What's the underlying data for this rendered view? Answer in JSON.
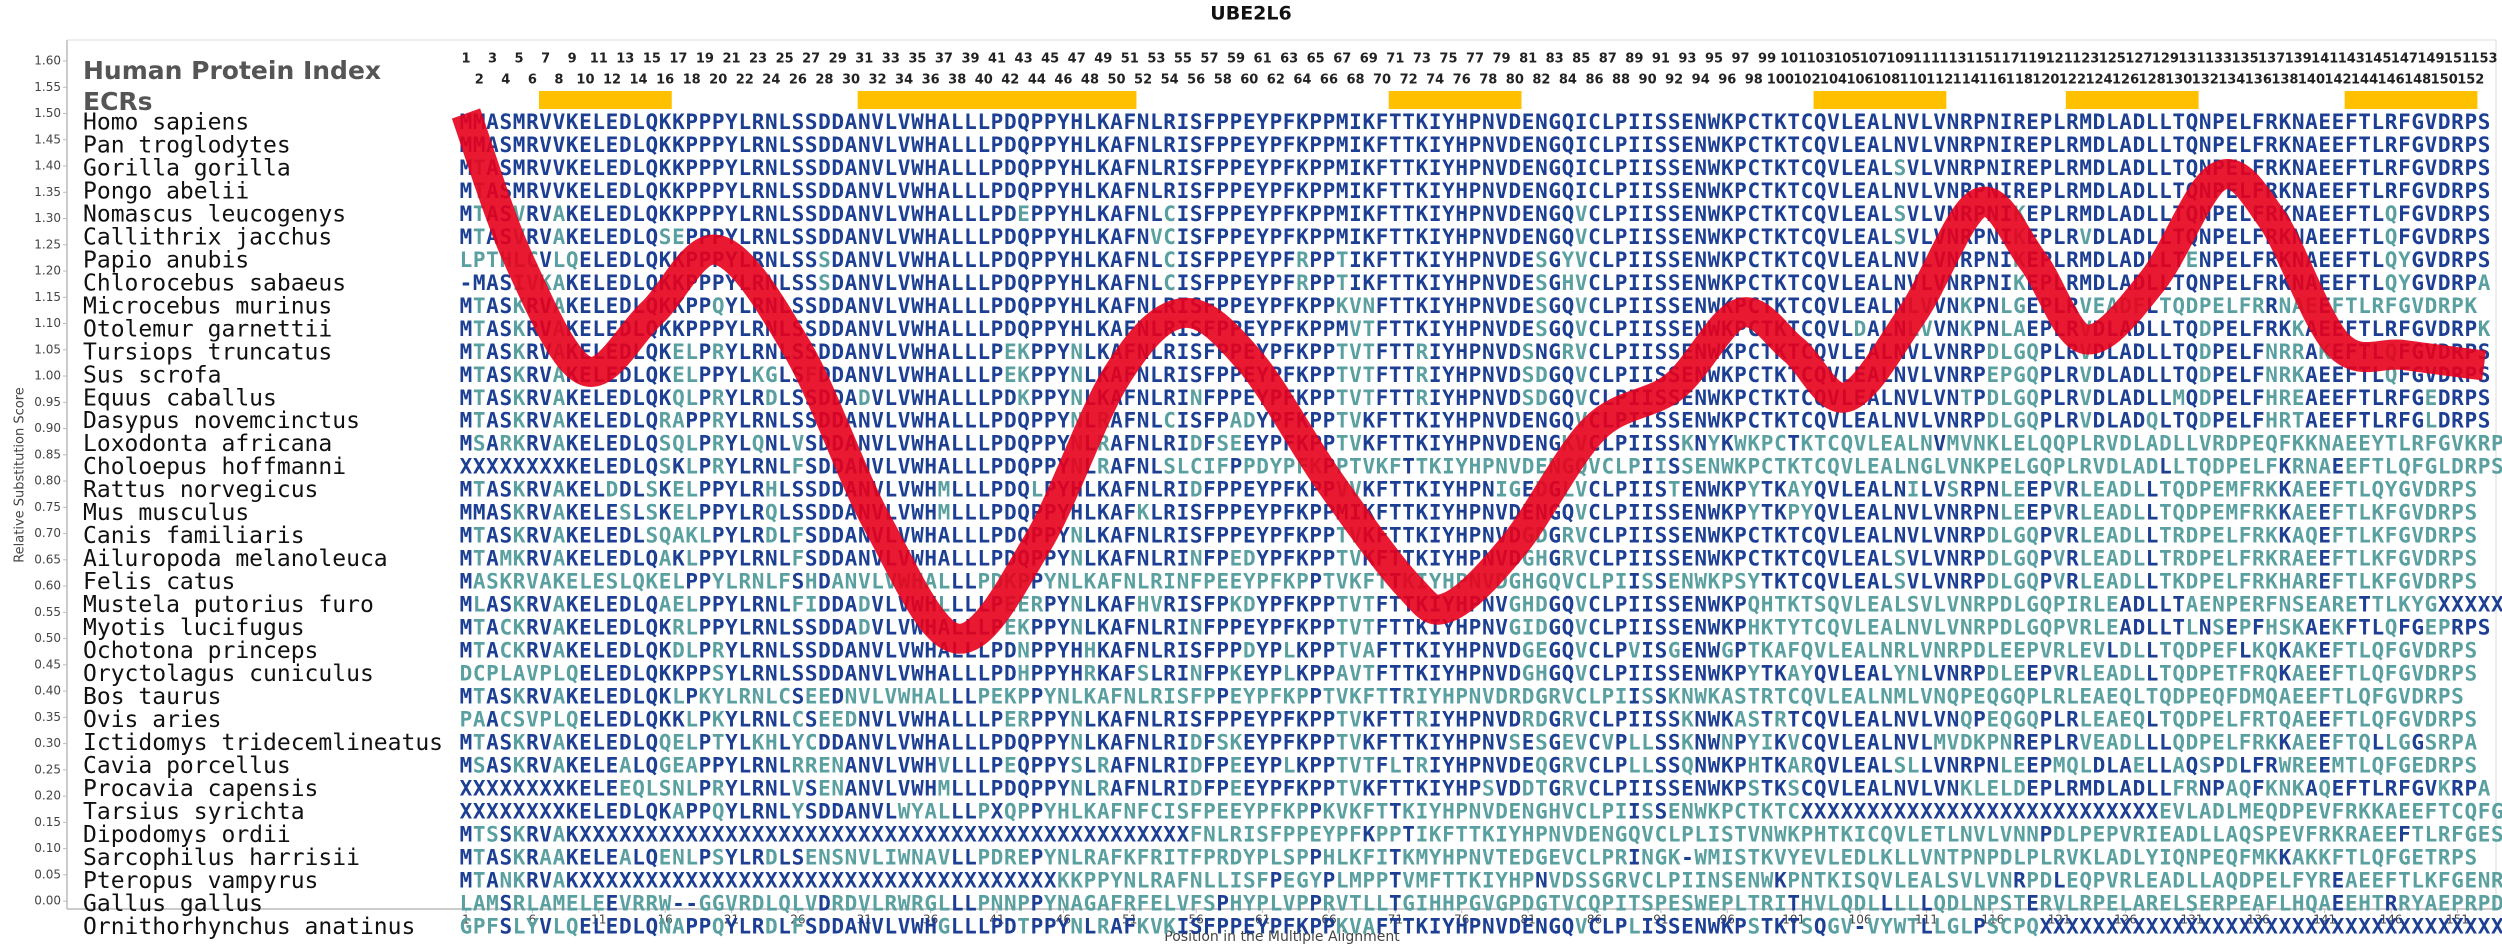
{
  "chart_data": {
    "type": "line",
    "title": "UBE2L6",
    "ylabel": "Relative Substitution Score",
    "xlabel": "Position in the Multiple Alignment",
    "index_label": "Human Protein Index",
    "ecr_label": "ECRs",
    "ecr_color": "#ffc000",
    "color": "#e8001c",
    "xlim": [
      -29.05,
      153.9
    ],
    "ylim": [
      -0.015,
      1.64
    ],
    "yticks": [
      {
        "value": 0,
        "label": "0.00"
      },
      {
        "value": 0.05,
        "label": "0.05"
      },
      {
        "value": 0.1,
        "label": "0.10"
      },
      {
        "value": 0.15,
        "label": "0.15"
      },
      {
        "value": 0.2,
        "label": "0.20"
      },
      {
        "value": 0.25,
        "label": "0.25"
      },
      {
        "value": 0.3,
        "label": "0.30"
      },
      {
        "value": 0.35,
        "label": "0.35"
      },
      {
        "value": 0.4,
        "label": "0.40"
      },
      {
        "value": 0.45,
        "label": "0.45"
      },
      {
        "value": 0.5,
        "label": "0.50"
      },
      {
        "value": 0.55,
        "label": "0.55"
      },
      {
        "value": 0.6,
        "label": "0.60"
      },
      {
        "value": 0.65,
        "label": "0.65"
      },
      {
        "value": 0.7,
        "label": "0.70"
      },
      {
        "value": 0.75,
        "label": "0.75"
      },
      {
        "value": 0.8,
        "label": "0.80"
      },
      {
        "value": 0.85,
        "label": "0.85"
      },
      {
        "value": 0.9,
        "label": "0.90"
      },
      {
        "value": 0.95,
        "label": "0.95"
      },
      {
        "value": 1,
        "label": "1.00"
      },
      {
        "value": 1.05,
        "label": "1.05"
      },
      {
        "value": 1.1,
        "label": "1.10"
      },
      {
        "value": 1.15,
        "label": "1.15"
      },
      {
        "value": 1.2,
        "label": "1.20"
      },
      {
        "value": 1.25,
        "label": "1.25"
      },
      {
        "value": 1.3,
        "label": "1.30"
      },
      {
        "value": 1.35,
        "label": "1.35"
      },
      {
        "value": 1.4,
        "label": "1.40"
      },
      {
        "value": 1.45,
        "label": "1.45"
      },
      {
        "value": 1.5,
        "label": "1.50"
      },
      {
        "value": 1.55,
        "label": "1.55"
      },
      {
        "value": 1.6,
        "label": "1.60"
      }
    ],
    "xticks": [
      1,
      6,
      11,
      16,
      21,
      26,
      31,
      36,
      41,
      46,
      51,
      56,
      61,
      66,
      71,
      76,
      81,
      86,
      91,
      96,
      101,
      106,
      111,
      116,
      121,
      126,
      131,
      136,
      141,
      146,
      151
    ],
    "x": [
      1,
      5,
      10,
      15,
      20,
      26,
      32,
      38,
      44,
      50,
      55,
      60,
      66,
      72,
      75,
      80,
      86,
      92,
      97,
      101,
      105,
      110,
      115,
      119,
      123,
      128,
      133,
      137,
      142,
      147,
      153
    ],
    "values": [
      1.5,
      1.22,
      1.01,
      1.12,
      1.24,
      1.05,
      0.72,
      0.5,
      0.68,
      1.0,
      1.12,
      1.03,
      0.8,
      0.6,
      0.56,
      0.68,
      0.9,
      0.98,
      1.12,
      1.05,
      0.96,
      1.12,
      1.33,
      1.22,
      1.07,
      1.18,
      1.38,
      1.3,
      1.06,
      1.04,
      1.02
    ],
    "positions": [
      1,
      2,
      3,
      4,
      5,
      6,
      7,
      8,
      9,
      10,
      11,
      12,
      13,
      14,
      15,
      16,
      17,
      18,
      19,
      20,
      21,
      22,
      23,
      24,
      25,
      26,
      27,
      28,
      29,
      30,
      31,
      32,
      33,
      34,
      35,
      36,
      37,
      38,
      39,
      40,
      41,
      42,
      43,
      44,
      45,
      46,
      47,
      48,
      49,
      50,
      51,
      52,
      53,
      54,
      55,
      56,
      57,
      58,
      59,
      60,
      61,
      62,
      63,
      64,
      65,
      66,
      67,
      68,
      69,
      70,
      71,
      72,
      73,
      74,
      75,
      76,
      77,
      78,
      79,
      80,
      81,
      82,
      83,
      84,
      85,
      86,
      87,
      88,
      89,
      90,
      91,
      92,
      93,
      94,
      95,
      96,
      97,
      98,
      99,
      100,
      101,
      102,
      103,
      104,
      105,
      106,
      107,
      108,
      109,
      110,
      111,
      112,
      113,
      114,
      115,
      116,
      117,
      118,
      119,
      120,
      121,
      122,
      123,
      124,
      125,
      126,
      127,
      128,
      129,
      130,
      131,
      132,
      133,
      134,
      135,
      136,
      137,
      138,
      139,
      140,
      141,
      142,
      143,
      144,
      145,
      146,
      147,
      148,
      149,
      150,
      151,
      152,
      153
    ],
    "ecrs": [
      {
        "start": 7,
        "end": 16
      },
      {
        "start": 31,
        "end": 51
      },
      {
        "start": 71,
        "end": 80
      },
      {
        "start": 103,
        "end": 112
      },
      {
        "start": 122,
        "end": 131
      },
      {
        "start": 143,
        "end": 152
      }
    ],
    "species": [
      "Homo sapiens",
      "Pan troglodytes",
      "Gorilla gorilla",
      "Pongo abelii",
      "Nomascus leucogenys",
      "Callithrix jacchus",
      "Papio anubis",
      "Chlorocebus sabaeus",
      "Microcebus murinus",
      "Otolemur garnettii",
      "Tursiops truncatus",
      "Sus scrofa",
      "Equus caballus",
      "Dasypus novemcinctus",
      "Loxodonta africana",
      "Choloepus hoffmanni",
      "Rattus norvegicus",
      "Mus musculus",
      "Canis familiaris",
      "Ailuropoda melanoleuca",
      "Felis catus",
      "Mustela putorius furo",
      "Myotis lucifugus",
      "Ochotona princeps",
      "Oryctolagus cuniculus",
      "Bos taurus",
      "Ovis aries",
      "Ictidomys tridecemlineatus",
      "Cavia porcellus",
      "Procavia capensis",
      "Tarsius syrichta",
      "Dipodomys ordii",
      "Sarcophilus harrisii",
      "Pteropus vampyrus",
      "Gallus gallus",
      "Ornithorhynchus anatinus"
    ],
    "sequences": [
      "MMASMRVVKELEDLQKKPPPYLRNLSSDDANVLVWHALLLPDQPPYHLKAFNLRISFPPEYPFKPPMIKFTTKIYHPNVDENGQICLPIISSENWKPCTKTCQVLEALNVLVNRPNIREPLRMDLADLLTQNPELFRKNAEEFTLRFGVDRPS",
      "MMASMRVVKELEDLQKKPPPYLRNLSSDDANVLVWHALLLPDQPPYHLKAFNLRISFPPEYPFKPPMIKFTTKIYHPNVDENGQICLPIISSENWKPCTKTCQVLEALNVLVNRPNIREPLRMDLADLLTQNPELFRKNAEEFTLRFGVDRPS",
      "MTASMRVVKELEDLQKKPPPYLRNLSSDDANVLVWHALLLPDQPPYHLKAFNLRISFPPEYPFKPPMIKFTTKIYHPNVDENGQICLPIISSENWKPCTKTCQVLEALSVLVNRPNIREPLRMDLADLLTQNPELFRKNAEEFTLRFGVDRPS",
      "MTASMRVVKELEDLQKKPPPYLRNLSSDDANVLVWHALLLPDQPPYHLKAFNLRISFPPEYPFKPPMIKFTTKIYHPNVDENGQICLPIISSENWKPCTKTCQVLEALNVLVNRPNIREPLRMDLADLLTQNPELFRKNAEEFTLRFGVDRPS",
      "MTASVRVAKELEDLQKKPPPYLRNLSSDDANVLVWHALLLPDEPPYHLKAFNLCISFPPEYPFKPPMIKFTTKIYHPNVDENGQVCLPIISSENWKPCTKTCQVLEALSVLVNRPNIKEPLRMDLADLLTQNPELFRKNAEEFTLQFGVDRPS",
      "MTASVRVAKELEDLQSEPPPYLRNLSSDDANVLVWHALLLPDQPPYHLKAFNVCISFPPEYPFKPPMIKFTTKIYHPNVDENGQVCLPIISSENWKPCTKTCQVLEALSVLVNRPNIKEPLRVDLADLLTQNPELFRKNAEEFTLQFGVDRPS",
      "LPTHLCVLQELEDLQKKPPPYLRNLSSSDANVLVWHALLLPDQPPYHLKAFNLCISFPPEYPFRPPTIKFTTKIYHPNVDESGYVCLPIISSENWKPCTKTCQVLEALNVLVNRPNIKEPLRMDLADLLTENPELFRKNAEEFTLQYGVDRPS",
      "-MASIVKAKELEDLQKKPPPYLRNLSSSDANVLVWHALLLPDQPPYHLKAFNLCISFPPEYPFRPPTIKFTTKIYHPNVDESGHVCLPIISSENWKPCTKTCQVLEALNVLVNRPNIKEPLRMDLADLLTQNPELFRKNAEEFTLQYGVDRPA",
      "MTASKRVAKELEDLQKKPPQYLRNLSSDDANVLVWHALLLPDQPPYHLKAFNLRISFPPEYPFKPPKVNFTTKIYHPNVDESGQVCLPIISSENWKPCTKTCQVLEALNLVVNKPNLGEPLRVEADFLTQDPELFRRNAEEFTLRFGVDRPK",
      "MTASKRVAKELEDLQKKPPPYLRNLSSDDANVLVWHALLLPDQPPYHLKAFNLRISFPPEYPFKPPMVTFTTKIYHPNVDESGQVCLPIISSENWKPCTKTCQVLDALNLVVNKPNLAEPLRVDLADLLTQDPELFRKKAEEFTLRFGVDRPK",
      "MTASKRVAKELEDLQKELPRYLRNLSSDDANVLVWHALLLPEKPPYNLKAFNLRISFPPEYPFKPPTVTFTTRIYHPNVDSNGRVCLPIISSENWKPCTKTCQVLEALNVLVNRPDLGQPLRVDLADLLTQDPELFNRRAKEFTLQFGVDRPS",
      "MTASKRVAKELEDLQKELPPYLKGLSFDDANVLVWHALLLPEKPPYNLKAFNLRISFPPEYPFKPPTVTFTTRIYHPNVDSDGQVCLPIISSENWKPCTKTCQVLEALNVLVNRPEPGQPLRVDLADLLTQDPELFNRKAEEFTLQFGVDRPS",
      "MTASKRVAKELEDLQKQLPRYLRDLSSDDADVLVWHALLLPDKPPYNLKAFNLRINFPPEYPFKPPTVTFTTRIYHPNVDSDGQVCLPIISSENWKPCTKTCQVLEALNVLVNTPDLGQPLRVDLADLLMQDPELFHREAEEFTLRFGEDRPS",
      "MTASKRVAKELEDLQRAPPRYLRNLSSDDANVLVWHALLLPDQPPYNLRAFNLCISFPADYPFKPPTVKFTTKIYHPNVDENGQVCLPIISSENWKPCTKTCQVLEALNVLVNRPDLGQPLRVDLADQLTQDPELFHRTAEEFTLRFGLDRPS",
      "MSARKRVAKELEDLQSQLPRYLQNLVSDDANVLVWHALLLPDQPPYNLRAFNLRIDFSEEYPFKPPTVKFTTKIYHPNVDENGKVCLPIISSKNYKWKPCTKTCQVLEALNVMVNKLELQQPLRVDLADLLVRDPEQFKKNAEEYTLRFGVKRPT",
      "XXXXXXXXKELEDLQSKLPRYLRNLFSDDANVLVWHALLLPDQPPYNLRAFNLSLCIFPPDYPFKPPTVKFTTKIYHPNVDENGQVCLPIISSENWKPCTKTCQVLEALNGLVNKPELGQPLRVDLADLLTQDPELFKRNAEEFTLQFGLDRPS",
      "MTASKRVAKELDDLSKELPPYLRHLSSDDANVLVWHMLLLPDQLPYHLKAFNLRIDFPPEYPFKPPVVKFTTKIYHPNIGEDGLVCLPIISTENWKPYTKAYQVLEALNILVSRPNLEEPVRLEADLLTQDPEMFRKKAEEFTLQYGVDRPS",
      "MMASKRVAKELESLSKELPPYLRQLSSDDANVLVWHMLLLPDQPPYHLKAFKLRISFPPEYPFKPPMIKFTTKIYHPNVDENGQVCLPIISSENWKPYTKPYQVLEALNVLVNRPNLEEPVRLEADLLTQDPEMFRKKAEEFTLKFGVDRPS",
      "MTASKRVAKELEDLSQAKLPYLRDLFSDDANVLVWHALLLPDQPPYNLKAFNLRISFPPEYPFKPPTVKFTTKIYHPNVDGDGRVCLPIISSENWKPCTKTCQVLEALNVLVNRPDLGQPVRLEADLLTRDPELFRKKAQEFTLKFGVDRPS",
      "MTAMKRVAKELEDLQAKLPPYLRNLFSDDANVLVWHALLLPDQPPYNLKAFNLRINFPEDYPFKPPTVKFTTKIYHPNVDGHGRVCLPIISSENWKPCTKTCQVLEALSVLVNRPDLGQPVRLEADLLTRDPELFRKRAEEFTLKFGVDRPS",
      "MASKRVAKELESLQKELPPYLRNLFSHDANVLVWHALLLPDKPPYNLKAFNLRINFPEEYPFKPPTVKFTTKIYHPNVDGHGQVCLPIISSENWKPSYTKTCQVLEALSVLVNRPDLGQPVRLEADLLTKDPELFRKHAREFTLKFGVDRPS",
      "MLASKRVAKELEDLQAELPPYLRNLFIDDADVLVWHLLLLPEERPYNLKAFHVRISFPKDYPFKPPTVTFTTKIYHPNVGHDGQVCLPIISSENWKPQHTKTSQVLEALSVLVNRPDLGQPIRLEADLLTAENPERFNSEARETTLKYGXXXXX",
      "MTACKRVAKELEDLQKRLPPYLRNLSSDDADVLVWHALLLPEKPPYNLKAFNLRINFPPEYPFKPPTVTFTTKIYHPNVGIDGQVCLPIISSENWKPHKTYTCQVLEALNVLVNRPDLGQPVRLEADLLTLNSEPFHSKAEKFTLQFGEPRPS",
      "MTACKRVAKELEDLQKDLPRYLRNLSSDDANVLVWHALLLPDNPPYHHKAFNLRISFPPDYPLKPPTVAFTTKIYHPNVDGEGQVCLPVISGENWGPTKAFQVLEALNRLVNRPDLEEPVRLEVLDLLTQDPEFLKQKAKEFTLQFGVDRPS",
      "DCPLAVPLQELEDLQKKPPSYLRNLSSDDANVLVWHALLLPDHPPYHRKAFSLRINFPKEYPLKPPAVTFTTKIYHPNVDGHGQVCLPIISSENWKPYTKAYQVLEALYNLVNRPDLEEPVRLEADLLTQDPETFRQKAEEFTLQFGVDRPS",
      "MTASKRVAKELEDLQKLPKYLRNLCSEEDNVLVWHALLLPEKPPYNLKAFNLRISFPPEYPFKPPTVKFTTRIYHPNVDRDGRVCLPIISSKNWKASTRTCQVLEALNMLVNQPEQGQPLRLEAEQLTQDPEQFDMQAEEFTLQFGVDRPS",
      "PAACSVPLQELEDLQKKLPKYLRNLCSEEDNVLVWHALLLPERPPYNLKAFNLRISFPPEYPFKPPTVKFTTRIYHPNVDRDGRVCLPIISSKNWKASTRTCQVLEALNVLVNQPEQGQPLRLEAEQLTQDPELFRTQAEEFTLQFGVDRPS",
      "MTASKRVAKELEDLQQELPTYLKHLYCDDANVLVWHALLLPDQPPYNLKAFNLRIDFSKEYPFKPPTVKFTTKIYHPNVSESGEVCVPLLSSKNWNPYIKVCQVLEALNVLMVDKPNREPLRVEADLLLQDPELFRKKAEEFTQLLGGSRPA",
      "MSASKRVAKELEALQGEAPPYLRNLRRENANVLVWHVLLLPEQPPYSLRAFNLRIDFPEEYPLKPPTVTFLTRIYHPNVDEQGRVCLPLLSSQNWKPHTKARQVLEALSLLVNRPNLEEPMQLDLAELLAQSPDLFRWREEMTLQFGEDRPS",
      "XXXXXXXXKELEEQLSNLPRYLRNLVSENANVLVWHMLLLPDQPPYNLRAFNLRIDFPEEYPFKPPTVKFTTKIYHPSVDDTGRVCLPIISSENWKPSTKSCQVLEALNVLVNKLELDEPLRMDLADLLFRNPAQFKNKAQEFTLRFGVKRPA",
      "XXXXXXXXKELEDLQKAPPQYLRNLYSDDANVLWYALLLPXQPPYHLKAFNFCISFPEEYPFKPPKVKFTTKIYHPNVDENGHVCLPIISSENWKPCTKTCXXXXXXXXXXXXXXXXXXXXXXXXXXXEVLADLMEQDPEVFRKKAEEFTCQFGVDRPC",
      "MTSSKRVAKXXXXXXXXXXXXXXXXXXXXXXXXXXXXXXXXXXXXXXXXXXXXXXFNLRISFPPEYPFKPPTIKFTTKIYHPNVDENGQVCLPLISTVNWKPHTKICQVLETLNVLVNNPDLPEPVRIEADLLAQSPEVFRKRAEEFTLRFGESRPS",
      "MTASKRAAKELEALQENLPSYLRDLSENSNVLIWNAVLLPDREPYNLRAFKFRITFPRDYPLSPPHLKFITKMYHPNVTEDGEVCLPRINGK-WMISTKVYEVLEDLKLLVNTPNPDLPLRVKLADLYIQNPEQFMKKAKKFTLQFGETRPS",
      "MTANKRVAKXXXXXXXXXXXXXXXXXXXXXXXXXXXXXXXXXXXXKKPPYNLRAFNLLISFPEGYPLMPPTVMFTTKIYHPNVDSSGRVCLPIINSENWKPNTKISQVLEALSVLVNRPDLEQPVRLEADLLAQDPELFYREAEEFTLKFGENRPS",
      "LAMSRLAMELEEVRRW--GGVRDLQLVDRDVLRWRGLLLPNNPPYNAGAFRFELVFSPHYPLVPPRVTLLTGIHHPGVGPDGTVCQPITSPESWEPLTRITHVLQDLLLLLQDLNPSTERVLRPELARELSERPEAFLHQAEEHTRRYAEPRPD",
      "GPFSLYVLQELEDLQNAPPQYLRDLFSDDANVLVWHGLLLPDTPPYNLRAFKVKISFPPEYPFKPPKVAFTTKIYHPNVDENGQVCLPLISSENWKPSTKTSQGV-VYWTLLGLPSCPQXXXXXXXXXXXXXXXXXXXXXXXXXXXXXXXXXXXXX"
    ]
  }
}
